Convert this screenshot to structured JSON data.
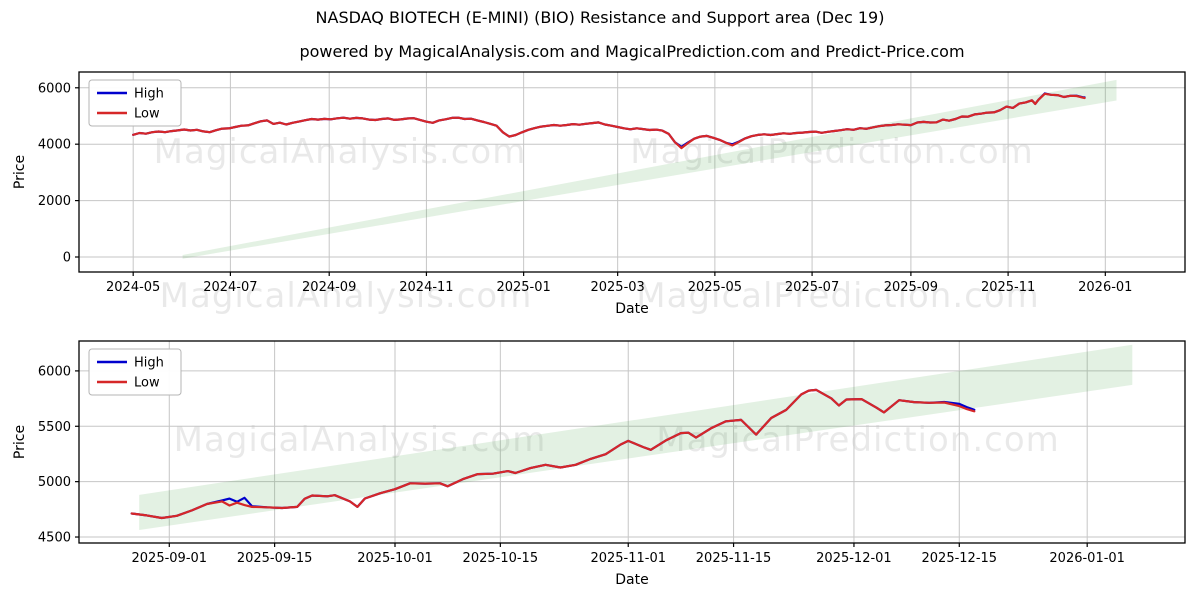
{
  "title": "NASDAQ BIOTECH (E-MINI) (BIO) Resistance and Support area (Dec 19)",
  "subtitle": "powered by MagicalAnalysis.com and MagicalPrediction.com and Predict-Price.com",
  "watermarks": {
    "left": "MagicalAnalysis.com",
    "right": "MagicalPrediction.com"
  },
  "legend": {
    "high_label": "High",
    "low_label": "Low"
  },
  "colors": {
    "high": "#0000cd",
    "low": "#d62728",
    "band": "rgba(70,160,70,0.15)",
    "grid": "#c6c6c6",
    "spine": "#000000",
    "text": "#000000"
  },
  "chart_data": [
    {
      "type": "line",
      "xlabel": "Date",
      "ylabel": "Price",
      "x_domain": [
        "2024-03-28",
        "2026-02-20"
      ],
      "y_domain": [
        -532,
        6560
      ],
      "y_ticks": [
        0,
        2000,
        4000,
        6000
      ],
      "x_ticks": [
        [
          "2024-05-01",
          "2024-05"
        ],
        [
          "2024-07-01",
          "2024-07"
        ],
        [
          "2024-09-01",
          "2024-09"
        ],
        [
          "2024-11-01",
          "2024-11"
        ],
        [
          "2025-01-01",
          "2025-01"
        ],
        [
          "2025-03-01",
          "2025-03"
        ],
        [
          "2025-05-01",
          "2025-05"
        ],
        [
          "2025-07-01",
          "2025-07"
        ],
        [
          "2025-09-01",
          "2025-09"
        ],
        [
          "2025-11-01",
          "2025-11"
        ],
        [
          "2026-01-01",
          "2026-01"
        ]
      ],
      "band": {
        "start": "2024-05-01",
        "lower": [
          [
            31,
            -60
          ],
          [
            617,
            5550
          ]
        ],
        "upper": [
          [
            31,
            70
          ],
          [
            617,
            6280
          ]
        ]
      },
      "series": {
        "start": "2024-05-01",
        "offsets": [
          0,
          4,
          8,
          12,
          16,
          20,
          24,
          28,
          32,
          36,
          40,
          44,
          48,
          52,
          56,
          60,
          64,
          68,
          72,
          76,
          80,
          84,
          88,
          92,
          96,
          100,
          104,
          108,
          112,
          116,
          120,
          124,
          128,
          132,
          136,
          140,
          144,
          148,
          152,
          156,
          160,
          164,
          168,
          172,
          176,
          180,
          184,
          188,
          192,
          196,
          200,
          204,
          208,
          212,
          216,
          220,
          224,
          228,
          232,
          236,
          240,
          244,
          248,
          252,
          256,
          260,
          264,
          268,
          272,
          276,
          280,
          284,
          288,
          292,
          296,
          300,
          304,
          308,
          312,
          316,
          320,
          324,
          328,
          332,
          336,
          340,
          344,
          348,
          352,
          356,
          360,
          364,
          368,
          372,
          376,
          380,
          384,
          388,
          392,
          396,
          400,
          404,
          408,
          412,
          416,
          420,
          424,
          428,
          432,
          436,
          440,
          444,
          448,
          452,
          456,
          460,
          464,
          468,
          472,
          476,
          480,
          484,
          488,
          492,
          496,
          500,
          504,
          508,
          512,
          516,
          520,
          524,
          528,
          532,
          536,
          540,
          544,
          548,
          552,
          556,
          560,
          564,
          566,
          568,
          572,
          576,
          580,
          584,
          588,
          592,
          596,
          597
        ],
        "low": [
          4332,
          4398,
          4372,
          4425,
          4450,
          4426,
          4465,
          4488,
          4520,
          4485,
          4512,
          4452,
          4425,
          4495,
          4552,
          4560,
          4608,
          4655,
          4668,
          4742,
          4812,
          4845,
          4718,
          4762,
          4700,
          4758,
          4800,
          4852,
          4895,
          4872,
          4898,
          4882,
          4918,
          4938,
          4905,
          4932,
          4915,
          4872,
          4858,
          4892,
          4915,
          4862,
          4878,
          4912,
          4920,
          4862,
          4798,
          4758,
          4845,
          4882,
          4932,
          4940,
          4892,
          4905,
          4842,
          4788,
          4722,
          4655,
          4420,
          4268,
          4325,
          4420,
          4510,
          4572,
          4625,
          4652,
          4682,
          4655,
          4682,
          4712,
          4692,
          4722,
          4748,
          4772,
          4698,
          4655,
          4608,
          4562,
          4528,
          4562,
          4535,
          4505,
          4518,
          4482,
          4365,
          4068,
          3862,
          4035,
          4195,
          4268,
          4295,
          4228,
          4152,
          4048,
          3958,
          4078,
          4205,
          4285,
          4330,
          4352,
          4325,
          4358,
          4385,
          4368,
          4398,
          4412,
          4432,
          4448,
          4405,
          4438,
          4468,
          4495,
          4532,
          4512,
          4568,
          4545,
          4595,
          4638,
          4668,
          4682,
          4705,
          4692,
          4678,
          4768,
          4792,
          4768,
          4772,
          4872,
          4832,
          4895,
          4982,
          4980,
          5058,
          5082,
          5122,
          5128,
          5205,
          5332,
          5288,
          5438,
          5482,
          5555,
          5428,
          5575,
          5788,
          5752,
          5742,
          5672,
          5715,
          5708,
          5648,
          5638
        ],
        "high_deltas": {
          "344": 45,
          "348": 20,
          "376": 38,
          "380": 15,
          "572": 12,
          "592": 10,
          "596": 14,
          "597": 20
        }
      }
    },
    {
      "type": "line",
      "xlabel": "Date",
      "ylabel": "Price",
      "x_domain": [
        "2025-08-20",
        "2026-01-14"
      ],
      "y_domain": [
        4446,
        6270
      ],
      "y_ticks": [
        4500,
        5000,
        5500,
        6000
      ],
      "x_ticks": [
        [
          "2025-09-01",
          "2025-09-01"
        ],
        [
          "2025-09-15",
          "2025-09-15"
        ],
        [
          "2025-10-01",
          "2025-10-01"
        ],
        [
          "2025-10-15",
          "2025-10-15"
        ],
        [
          "2025-11-01",
          "2025-11-01"
        ],
        [
          "2025-11-15",
          "2025-11-15"
        ],
        [
          "2025-12-01",
          "2025-12-01"
        ],
        [
          "2025-12-15",
          "2025-12-15"
        ],
        [
          "2026-01-01",
          "2026-01-01"
        ]
      ],
      "band": {
        "start": "2025-08-27",
        "lower": [
          [
            1,
            4563
          ],
          [
            133,
            5874
          ]
        ],
        "upper": [
          [
            1,
            4880
          ],
          [
            133,
            6236
          ]
        ]
      },
      "series": {
        "start": "2025-08-27",
        "offsets": [
          0,
          2,
          4,
          6,
          8,
          10,
          12,
          13,
          14,
          15,
          16,
          18,
          20,
          22,
          23,
          24,
          26,
          27,
          29,
          30,
          31,
          33,
          35,
          37,
          39,
          41,
          42,
          44,
          46,
          48,
          50,
          51,
          53,
          55,
          57,
          59,
          61,
          63,
          65,
          66,
          68,
          69,
          71,
          73,
          74,
          75,
          77,
          79,
          81,
          83,
          85,
          87,
          89,
          90,
          91,
          93,
          94,
          95,
          97,
          99,
          100,
          102,
          104,
          106,
          108,
          110,
          111,
          112
        ],
        "low": [
          4712,
          4695,
          4672,
          4692,
          4740,
          4798,
          4822,
          4785,
          4810,
          4788,
          4772,
          4768,
          4762,
          4772,
          4845,
          4875,
          4868,
          4878,
          4822,
          4772,
          4848,
          4895,
          4932,
          4985,
          4982,
          4985,
          4958,
          5022,
          5068,
          5072,
          5095,
          5078,
          5122,
          5152,
          5128,
          5152,
          5205,
          5248,
          5335,
          5368,
          5312,
          5288,
          5372,
          5438,
          5442,
          5398,
          5482,
          5545,
          5558,
          5425,
          5575,
          5648,
          5788,
          5822,
          5828,
          5752,
          5688,
          5742,
          5745,
          5668,
          5625,
          5735,
          5718,
          5712,
          5715,
          5682,
          5655,
          5635
        ],
        "high_deltas": {
          "12": 8,
          "13": 62,
          "14": 8,
          "15": 66,
          "16": 6,
          "108": 4,
          "110": 20,
          "111": 18,
          "112": 14
        }
      }
    }
  ]
}
